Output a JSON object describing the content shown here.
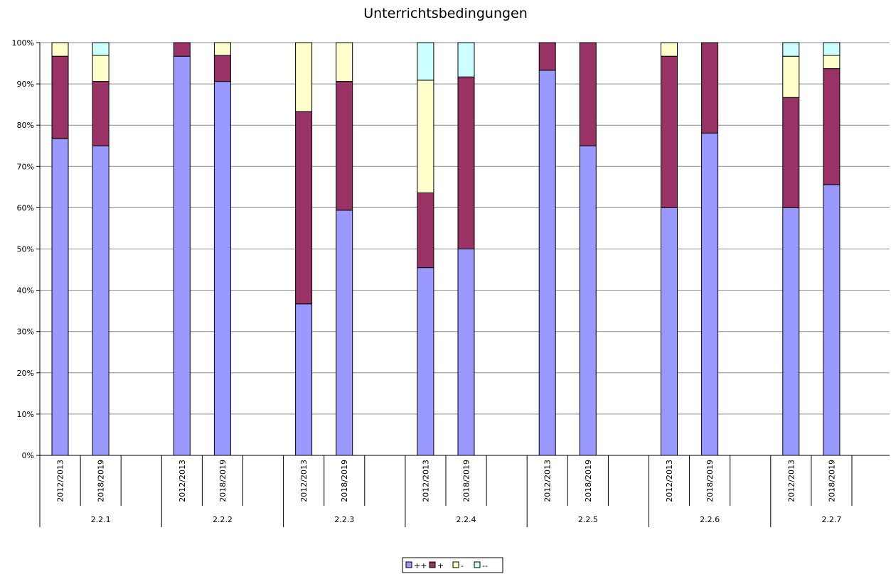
{
  "chart_data": {
    "type": "bar",
    "stacked": true,
    "title": "Unterrichtsbedingungen",
    "xlabel": "",
    "ylabel": "",
    "ylim": [
      0,
      100
    ],
    "y_tick_labels": [
      "0%",
      "10%",
      "20%",
      "30%",
      "40%",
      "50%",
      "60%",
      "70%",
      "80%",
      "90%",
      "100%"
    ],
    "grid": "horizontal",
    "legend_position": "bottom",
    "groups": [
      "2.2.1",
      "2.2.2",
      "2.2.3",
      "2.2.4",
      "2.2.5",
      "2.2.6",
      "2.2.7"
    ],
    "subcategories": [
      "2012/2013",
      "2018/2019"
    ],
    "series": [
      {
        "name": "++",
        "color": "#9999ff",
        "values": [
          76.7,
          75.0,
          96.7,
          90.6,
          36.7,
          59.4,
          45.5,
          50.0,
          93.3,
          75.0,
          60.0,
          78.1,
          60.0,
          65.6
        ]
      },
      {
        "name": "+",
        "color": "#993366",
        "values": [
          20.0,
          15.6,
          3.3,
          6.3,
          46.6,
          31.2,
          18.1,
          41.7,
          6.7,
          25.0,
          36.7,
          21.9,
          26.7,
          28.1
        ]
      },
      {
        "name": "-",
        "color": "#ffffcc",
        "values": [
          3.3,
          6.3,
          0.0,
          3.1,
          16.7,
          9.4,
          27.3,
          0.0,
          0.0,
          0.0,
          3.3,
          0.0,
          10.0,
          3.2
        ]
      },
      {
        "name": "--",
        "color": "#ccffff",
        "values": [
          0.0,
          3.1,
          0.0,
          0.0,
          0.0,
          0.0,
          9.1,
          8.3,
          0.0,
          0.0,
          0.0,
          0.0,
          3.3,
          3.1
        ]
      }
    ]
  }
}
